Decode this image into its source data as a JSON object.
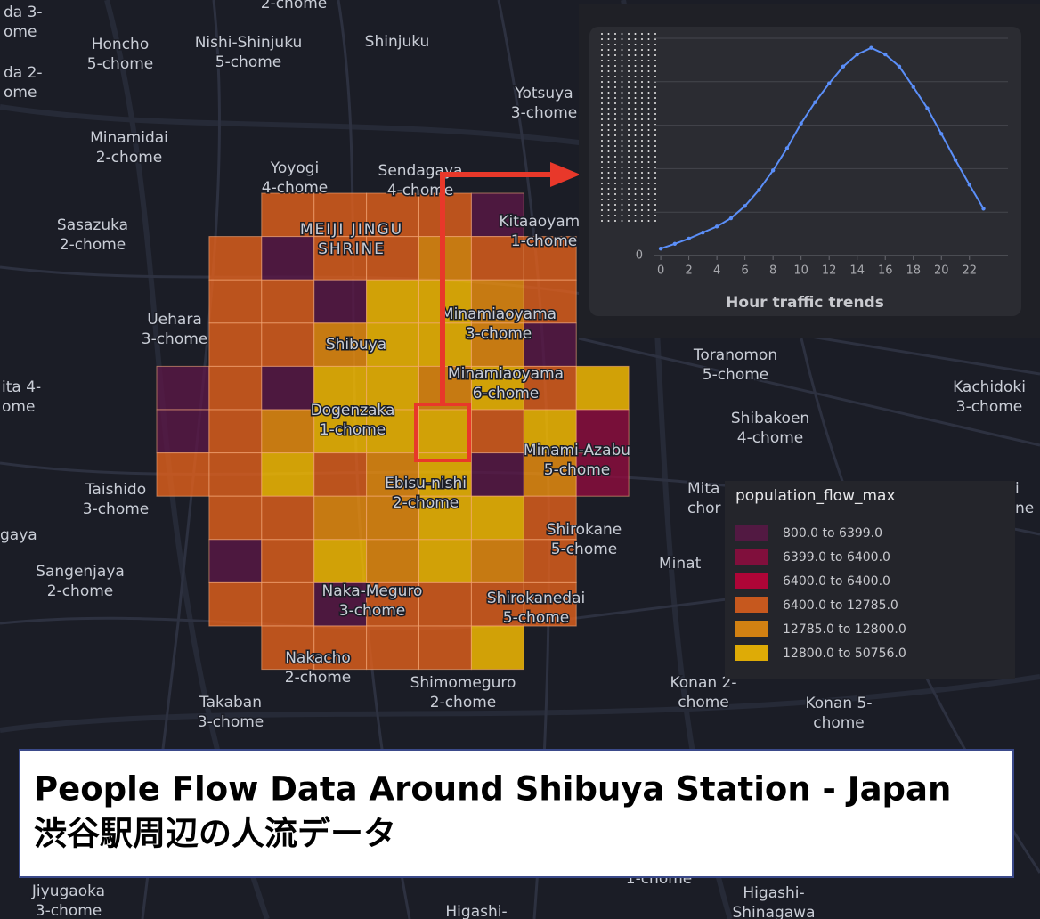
{
  "map_labels": [
    [
      "2-chome"
    ],
    [
      "da 3-",
      "ome"
    ],
    [
      "Honcho",
      "5-chome"
    ],
    [
      "Nishi-Shinjuku",
      "5-chome"
    ],
    [
      "Shinjuku"
    ],
    [
      "da 2-",
      "ome"
    ],
    [
      "Yotsuya",
      "3-chome"
    ],
    [
      "Minamidai",
      "2-chome"
    ],
    [
      "Yoyogi",
      "4-chome"
    ],
    [
      "Sendagaya",
      "4-chome"
    ],
    [
      "MEIJI JINGU",
      "SHRINE"
    ],
    [
      "Kitaaoyama",
      "1-chome"
    ],
    [
      "Sasazuka",
      "2-chome"
    ],
    [
      "Minamiaoyama",
      "3-chome"
    ],
    [
      "Uehara",
      "3-chome"
    ],
    [
      "Shibuya"
    ],
    [
      "Toranomon",
      "5-chome"
    ],
    [
      "Minamiaoyama",
      "6-chome"
    ],
    [
      "ita 4-",
      "ome"
    ],
    [
      "Kachidoki",
      "3-chome"
    ],
    [
      "Dogenzaka",
      "1-chome"
    ],
    [
      "Shibakoen",
      "4-chome"
    ],
    [
      "Minami-Azabu",
      "5-chome"
    ],
    [
      "Ebisu-nishi",
      "2-chome"
    ],
    [
      "Taishido",
      "3-chome"
    ],
    [
      "Mita",
      "chor"
    ],
    [
      "i",
      "ne"
    ],
    [
      "gaya"
    ],
    [
      "Shirokane",
      "5-chome"
    ],
    [
      "Minat"
    ],
    [
      "Sangenjaya",
      "2-chome"
    ],
    [
      "Naka-Meguro",
      "3-chome"
    ],
    [
      "Shirokanedai",
      "5-chome"
    ],
    [
      "Nakacho",
      "2-chome"
    ],
    [
      "Konan 2-",
      "chome"
    ],
    [
      "Shimomeguro",
      "2-chome"
    ],
    [
      "Takaban",
      "3-chome"
    ],
    [
      "Konan 5-",
      "chome"
    ],
    [
      "1-chome"
    ],
    [
      "Jiyugaoka",
      "3-chome"
    ],
    [
      "Higashi-"
    ],
    [
      "Higashi-",
      "Shinagawa"
    ]
  ],
  "chart_data": {
    "type": "line",
    "xlabel": "Hour traffic trends",
    "color": "#5b8ff9",
    "x": [
      0,
      1,
      2,
      3,
      4,
      5,
      6,
      7,
      8,
      9,
      10,
      11,
      12,
      13,
      14,
      15,
      16,
      17,
      18,
      19,
      20,
      21,
      22,
      23
    ],
    "values": [
      0.16,
      0.27,
      0.39,
      0.53,
      0.67,
      0.86,
      1.14,
      1.51,
      1.96,
      2.47,
      3.04,
      3.53,
      3.96,
      4.35,
      4.63,
      4.78,
      4.63,
      4.35,
      3.88,
      3.39,
      2.8,
      2.2,
      1.63,
      1.08
    ],
    "xlim": [
      -0.45,
      24.3
    ],
    "ylim": [
      0,
      5
    ],
    "xticks": [
      0,
      2,
      4,
      6,
      8,
      10,
      12,
      14,
      16,
      18,
      20,
      22
    ],
    "yticks": [
      0
    ],
    "grid": true
  },
  "legend": {
    "title": "population_flow_max",
    "items": [
      {
        "label": "800.0 to 6399.0",
        "color": "#5a1846"
      },
      {
        "label": "6399.0 to 6400.0",
        "color": "#900c3f"
      },
      {
        "label": "6400.0 to 6400.0",
        "color": "#c70039"
      },
      {
        "label": "6400.0 to 12785.0",
        "color": "#e3611c"
      },
      {
        "label": "12785.0 to 12800.0",
        "color": "#f1920e"
      },
      {
        "label": "12800.0 to 50756.0",
        "color": "#ffc300"
      }
    ]
  },
  "title": {
    "line1": "People Flow Data Around Shibuya Station - Japan",
    "line2": "渋谷駅周辺の人流データ"
  }
}
